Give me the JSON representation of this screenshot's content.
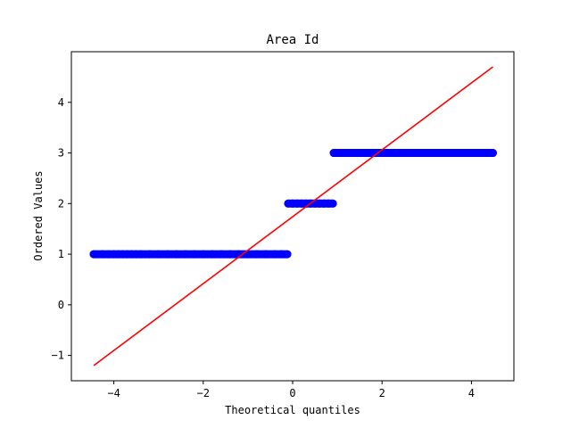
{
  "chart_data": {
    "type": "scatter",
    "title": "Area Id",
    "xlabel": "Theoretical quantiles",
    "ylabel": "Ordered Values",
    "xlim": [
      -4.95,
      4.95
    ],
    "ylim": [
      -1.5,
      5.0
    ],
    "xticks": [
      {
        "value": -4,
        "label": "−4"
      },
      {
        "value": -2,
        "label": "−2"
      },
      {
        "value": 0,
        "label": "0"
      },
      {
        "value": 2,
        "label": "2"
      },
      {
        "value": 4,
        "label": "4"
      }
    ],
    "yticks": [
      {
        "value": -1,
        "label": "−1"
      },
      {
        "value": 0,
        "label": "0"
      },
      {
        "value": 1,
        "label": "1"
      },
      {
        "value": 2,
        "label": "2"
      },
      {
        "value": 3,
        "label": "3"
      },
      {
        "value": 4,
        "label": "4"
      }
    ],
    "grid": false,
    "series": [
      {
        "kind": "points",
        "color": "#0000ff",
        "points": [
          {
            "x": -4.45,
            "y": 1
          },
          {
            "x": -4.25,
            "y": 1
          },
          {
            "x": -4.12,
            "y": 1
          },
          {
            "x": -4.0,
            "y": 1
          },
          {
            "x": -3.9,
            "y": 1
          },
          {
            "x": -3.8,
            "y": 1
          },
          {
            "x": -3.7,
            "y": 1
          },
          {
            "x": -3.6,
            "y": 1
          },
          {
            "x": -3.5,
            "y": 1
          },
          {
            "x": -3.4,
            "y": 1
          },
          {
            "x": -3.2,
            "y": 1
          },
          {
            "x": -3.0,
            "y": 1
          },
          {
            "x": -2.8,
            "y": 1
          },
          {
            "x": -2.6,
            "y": 1
          },
          {
            "x": -2.4,
            "y": 1
          },
          {
            "x": -2.2,
            "y": 1
          },
          {
            "x": -2.0,
            "y": 1
          },
          {
            "x": -1.8,
            "y": 1
          },
          {
            "x": -1.6,
            "y": 1
          },
          {
            "x": -1.4,
            "y": 1
          },
          {
            "x": -1.2,
            "y": 1
          },
          {
            "x": -1.0,
            "y": 1
          },
          {
            "x": -0.8,
            "y": 1
          },
          {
            "x": -0.6,
            "y": 1
          },
          {
            "x": -0.4,
            "y": 1
          },
          {
            "x": -0.25,
            "y": 1
          },
          {
            "x": -0.12,
            "y": 1
          },
          {
            "x": -0.1,
            "y": 2
          },
          {
            "x": 0.0,
            "y": 2
          },
          {
            "x": 0.1,
            "y": 2
          },
          {
            "x": 0.2,
            "y": 2
          },
          {
            "x": 0.3,
            "y": 2
          },
          {
            "x": 0.4,
            "y": 2
          },
          {
            "x": 0.5,
            "y": 2
          },
          {
            "x": 0.6,
            "y": 2
          },
          {
            "x": 0.7,
            "y": 2
          },
          {
            "x": 0.8,
            "y": 2
          },
          {
            "x": 0.9,
            "y": 2
          },
          {
            "x": 0.92,
            "y": 3
          },
          {
            "x": 1.0,
            "y": 3
          },
          {
            "x": 1.2,
            "y": 3
          },
          {
            "x": 1.4,
            "y": 3
          },
          {
            "x": 1.6,
            "y": 3
          },
          {
            "x": 1.8,
            "y": 3
          },
          {
            "x": 2.0,
            "y": 3
          },
          {
            "x": 2.2,
            "y": 3
          },
          {
            "x": 2.4,
            "y": 3
          },
          {
            "x": 2.6,
            "y": 3
          },
          {
            "x": 2.8,
            "y": 3
          },
          {
            "x": 3.0,
            "y": 3
          },
          {
            "x": 3.2,
            "y": 3
          },
          {
            "x": 3.4,
            "y": 3
          },
          {
            "x": 3.55,
            "y": 3
          },
          {
            "x": 3.7,
            "y": 3
          },
          {
            "x": 3.85,
            "y": 3
          },
          {
            "x": 4.0,
            "y": 3
          },
          {
            "x": 4.12,
            "y": 3
          },
          {
            "x": 4.25,
            "y": 3
          },
          {
            "x": 4.48,
            "y": 3
          }
        ]
      },
      {
        "kind": "fit-line",
        "color": "#ff0000",
        "points": [
          {
            "x": -4.45,
            "y": -1.2
          },
          {
            "x": 4.48,
            "y": 4.7
          }
        ]
      }
    ]
  }
}
